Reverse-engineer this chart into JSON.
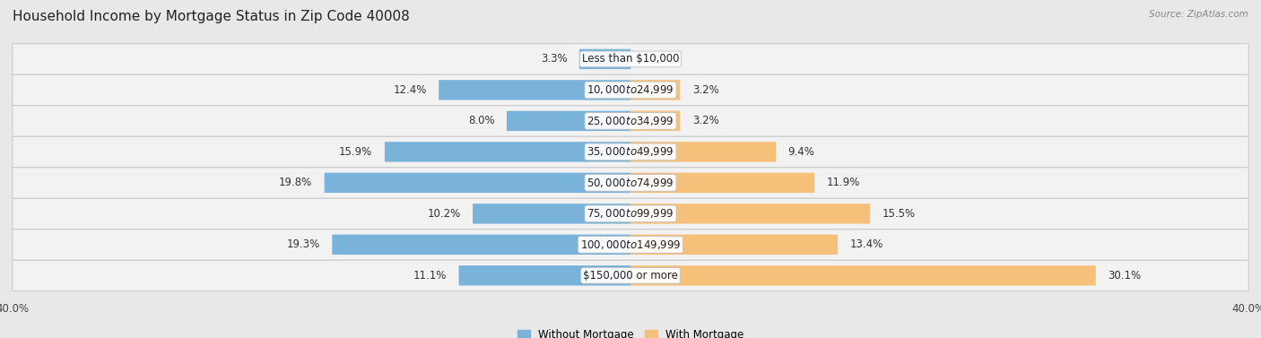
{
  "title": "Household Income by Mortgage Status in Zip Code 40008",
  "source": "Source: ZipAtlas.com",
  "categories": [
    "Less than $10,000",
    "$10,000 to $24,999",
    "$25,000 to $34,999",
    "$35,000 to $49,999",
    "$50,000 to $74,999",
    "$75,000 to $99,999",
    "$100,000 to $149,999",
    "$150,000 or more"
  ],
  "without_mortgage": [
    3.3,
    12.4,
    8.0,
    15.9,
    19.8,
    10.2,
    19.3,
    11.1
  ],
  "with_mortgage": [
    0.0,
    3.2,
    3.2,
    9.4,
    11.9,
    15.5,
    13.4,
    30.1
  ],
  "color_without": "#7ab3d9",
  "color_with": "#f5c07a",
  "axis_limit": 40.0,
  "bg_color": "#e8e8e8",
  "row_bg_light": "#f2f2f2",
  "label_fontsize": 8.5,
  "title_fontsize": 11,
  "legend_fontsize": 8.5,
  "source_fontsize": 7.5
}
